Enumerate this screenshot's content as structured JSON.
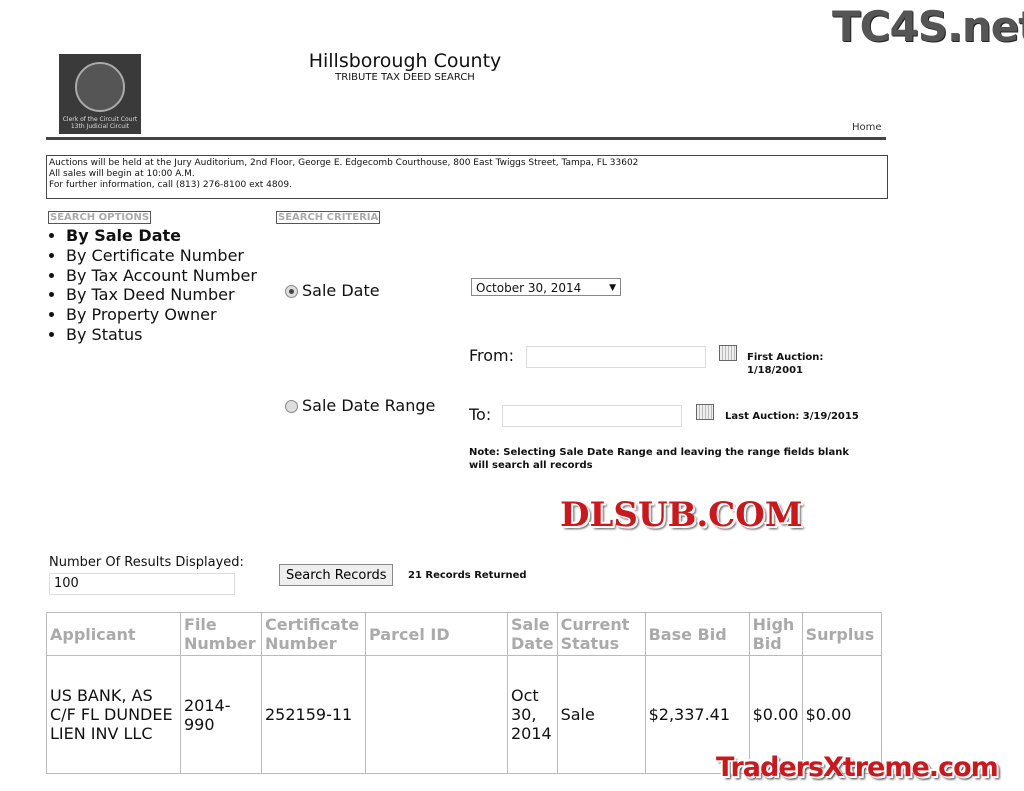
{
  "header": {
    "logo_text": "Clerk of the Circuit Court 13th Judicial Circuit",
    "title": "Hillsborough County",
    "subtitle": "TRIBUTE TAX DEED SEARCH",
    "home": "Home"
  },
  "notice": [
    "Auctions will be held at the Jury Auditorium, 2nd Floor, George E. Edgecomb Courthouse, 800 East Twiggs Street, Tampa, FL 33602",
    "All sales will begin at 10:00 A.M.",
    "For further information, call (813) 276-8100 ext 4809."
  ],
  "search_options": {
    "legend": "SEARCH OPTIONS",
    "items": [
      "By Sale Date",
      "By Certificate Number",
      "By Tax Account Number",
      "By Tax Deed Number",
      "By Property Owner",
      "By Status"
    ]
  },
  "search_criteria": {
    "legend": "SEARCH CRITERIA",
    "sale_date_label": "Sale Date",
    "sale_date_value": "October 30, 2014",
    "range_label": "Sale Date Range",
    "from_label": "From:",
    "to_label": "To:",
    "from_value": "",
    "to_value": "",
    "first_auction": "First Auction: 1/18/2001",
    "last_auction": "Last Auction: 3/19/2015",
    "note": "Note: Selecting Sale Date Range and leaving the range fields blank will search all records"
  },
  "results": {
    "count_label": "Number Of Results Displayed:",
    "count_value": "100",
    "search_button": "Search Records",
    "returned": "21 Records Returned"
  },
  "table": {
    "headers": [
      "Applicant",
      "File Number",
      "Certificate Number",
      "Parcel ID",
      "Sale Date",
      "Current Status",
      "Base Bid",
      "High Bid",
      "Surplus"
    ],
    "rows": [
      [
        "US BANK, AS C/F FL DUNDEE LIEN INV LLC",
        "2014-990",
        "252159-11",
        "",
        "Oct 30, 2014",
        "Sale",
        "$2,337.41",
        "$0.00",
        "$0.00"
      ]
    ]
  },
  "watermarks": [
    "TC4S.net",
    "DLSUB.COM",
    "TradersXtreme.com"
  ]
}
